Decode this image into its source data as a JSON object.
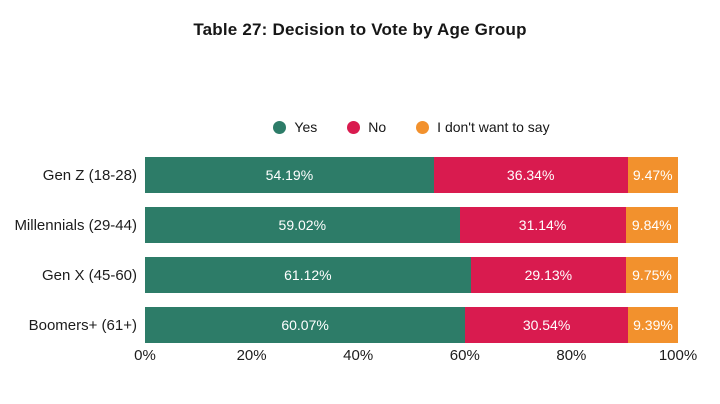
{
  "chart_data": {
    "type": "bar",
    "orientation": "horizontal",
    "stacked": true,
    "title": "Table 27: Decision to Vote by Age Group",
    "categories": [
      "Gen Z (18-28)",
      "Millennials (29-44)",
      "Gen X (45-60)",
      "Boomers+ (61+)"
    ],
    "series": [
      {
        "name": "Yes",
        "color": "#2d7c68",
        "values": [
          54.19,
          59.02,
          61.12,
          60.07
        ]
      },
      {
        "name": "No",
        "color": "#d91b4f",
        "values": [
          36.34,
          31.14,
          29.13,
          30.54
        ]
      },
      {
        "name": "I don't want to say",
        "color": "#f2912d",
        "values": [
          9.47,
          9.84,
          9.75,
          9.39
        ]
      }
    ],
    "xlabel": "",
    "ylabel": "",
    "xlim": [
      0,
      100
    ],
    "xticks": [
      "0%",
      "20%",
      "40%",
      "60%",
      "80%",
      "100%"
    ],
    "value_suffix": "%",
    "value_decimals": 2,
    "value_label_color": "#ffffff",
    "legend_position": "top",
    "grid": false,
    "background": "#ffffff",
    "title_color": "#161616",
    "axis_text_color": "#1c1c1c"
  }
}
